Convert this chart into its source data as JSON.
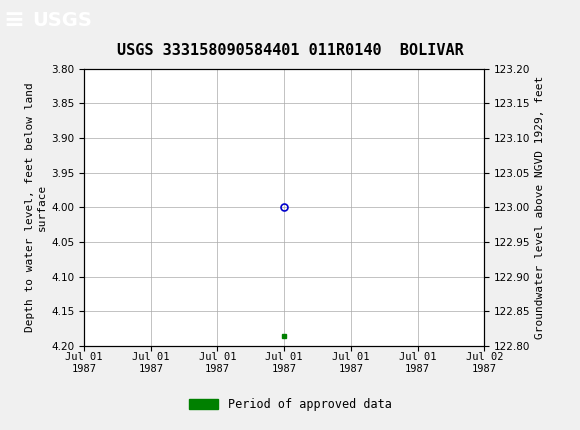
{
  "title": "USGS 333158090584401 011R0140  BOLIVAR",
  "header_color": "#1a6b3c",
  "background_color": "#f0f0f0",
  "plot_background": "#ffffff",
  "grid_color": "#aaaaaa",
  "left_ylabel": "Depth to water level, feet below land\nsurface",
  "right_ylabel": "Groundwater level above NGVD 1929, feet",
  "ylim_left_top": 3.8,
  "ylim_left_bottom": 4.2,
  "ylim_right_top": 123.2,
  "ylim_right_bottom": 122.8,
  "yticks_left": [
    3.8,
    3.85,
    3.9,
    3.95,
    4.0,
    4.05,
    4.1,
    4.15,
    4.2
  ],
  "yticks_right": [
    123.2,
    123.15,
    123.1,
    123.05,
    123.0,
    122.95,
    122.9,
    122.85,
    122.8
  ],
  "xlim": [
    0,
    6
  ],
  "xtick_positions": [
    0,
    1,
    2,
    3,
    4,
    5,
    6
  ],
  "xtick_labels": [
    "Jul 01\n1987",
    "Jul 01\n1987",
    "Jul 01\n1987",
    "Jul 01\n1987",
    "Jul 01\n1987",
    "Jul 01\n1987",
    "Jul 02\n1987"
  ],
  "data_point_x": 3.0,
  "data_point_y": 4.0,
  "data_point_color": "#0000cc",
  "data_point_marker": "o",
  "data_point_size": 5,
  "green_square_x": 3.0,
  "green_square_y": 4.185,
  "green_square_color": "#008000",
  "legend_label": "Period of approved data",
  "legend_color": "#008000",
  "font_color": "#000000",
  "title_fontsize": 11,
  "tick_fontsize": 7.5,
  "ylabel_fontsize": 8,
  "legend_fontsize": 8.5
}
